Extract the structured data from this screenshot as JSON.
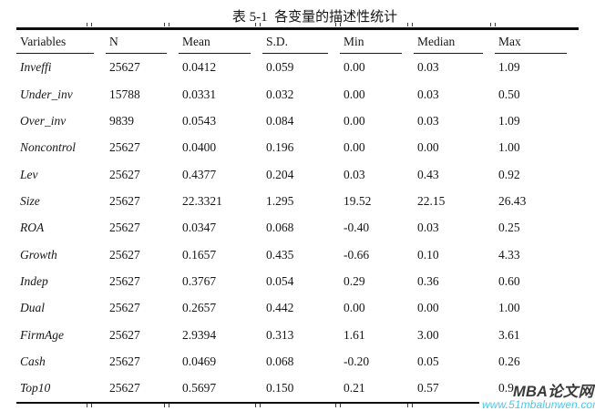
{
  "caption": "表 5-1  各变量的描述性统计",
  "table": {
    "columns": [
      "Variables",
      "N",
      "Mean",
      "S.D.",
      "Min",
      "Median",
      "Max"
    ],
    "rows": [
      [
        "Inveffi",
        "25627",
        "0.0412",
        "0.059",
        "0.00",
        "0.03",
        "1.09"
      ],
      [
        "Under_inv",
        "15788",
        "0.0331",
        "0.032",
        "0.00",
        "0.03",
        "0.50"
      ],
      [
        "Over_inv",
        "9839",
        "0.0543",
        "0.084",
        "0.00",
        "0.03",
        "1.09"
      ],
      [
        "Noncontrol",
        "25627",
        "0.0400",
        "0.196",
        "0.00",
        "0.00",
        "1.00"
      ],
      [
        "Lev",
        "25627",
        "0.4377",
        "0.204",
        "0.03",
        "0.43",
        "0.92"
      ],
      [
        "Size",
        "25627",
        "22.3321",
        "1.295",
        "19.52",
        "22.15",
        "26.43"
      ],
      [
        "ROA",
        "25627",
        "0.0347",
        "0.068",
        "-0.40",
        "0.03",
        "0.25"
      ],
      [
        "Growth",
        "25627",
        "0.1657",
        "0.435",
        "-0.66",
        "0.10",
        "4.33"
      ],
      [
        "Indep",
        "25627",
        "0.3767",
        "0.054",
        "0.29",
        "0.36",
        "0.60"
      ],
      [
        "Dual",
        "25627",
        "0.2657",
        "0.442",
        "0.00",
        "0.00",
        "1.00"
      ],
      [
        "FirmAge",
        "25627",
        "2.9394",
        "0.313",
        "1.61",
        "3.00",
        "3.61"
      ],
      [
        "Cash",
        "25627",
        "0.0469",
        "0.068",
        "-0.20",
        "0.05",
        "0.26"
      ],
      [
        "Top10",
        "25627",
        "0.5697",
        "0.150",
        "0.21",
        "0.57",
        "0.9"
      ]
    ]
  },
  "watermark": {
    "site_name": "MBA论文网",
    "url_www": "www",
    "url_dot": ".",
    "url_rest": "51mbalunwen.com",
    "colors": {
      "site_name": "#3a3a3a",
      "url": "#4ec7e6",
      "url_dot": "#d94fc4"
    }
  }
}
